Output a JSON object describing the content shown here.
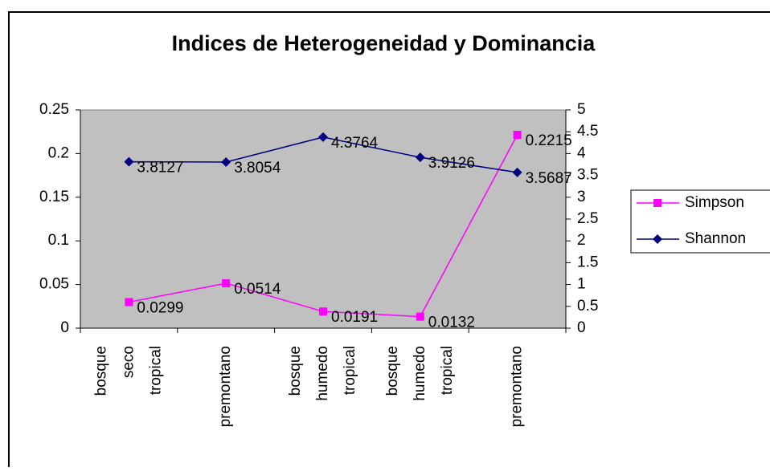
{
  "chart_data": {
    "type": "line",
    "title": "Indices de Heterogeneidad y Dominancia",
    "categories": [
      "bosque seco tropical",
      "premontano",
      "bosque humedo tropical",
      "bosque humedo tropical",
      "premontano"
    ],
    "series": [
      {
        "name": "Simpson",
        "color": "#ff00ff",
        "marker": "square",
        "values": [
          0.0299,
          0.0514,
          0.0191,
          0.0132,
          0.2215
        ]
      },
      {
        "name": "Shannon",
        "color": "#000080",
        "marker": "diamond",
        "axis": "y2",
        "values": [
          3.8127,
          3.8054,
          4.3764,
          3.9126,
          3.5687
        ]
      }
    ],
    "ylim": [
      0,
      0.25
    ],
    "yticks": [
      0,
      0.05,
      0.1,
      0.15,
      0.2,
      0.25
    ],
    "y2lim": [
      0,
      5
    ],
    "y2ticks": [
      0,
      0.5,
      1,
      1.5,
      2,
      2.5,
      3,
      3.5,
      4,
      4.5,
      5
    ],
    "plot_background": "#c0c0c0",
    "legend": "right"
  }
}
